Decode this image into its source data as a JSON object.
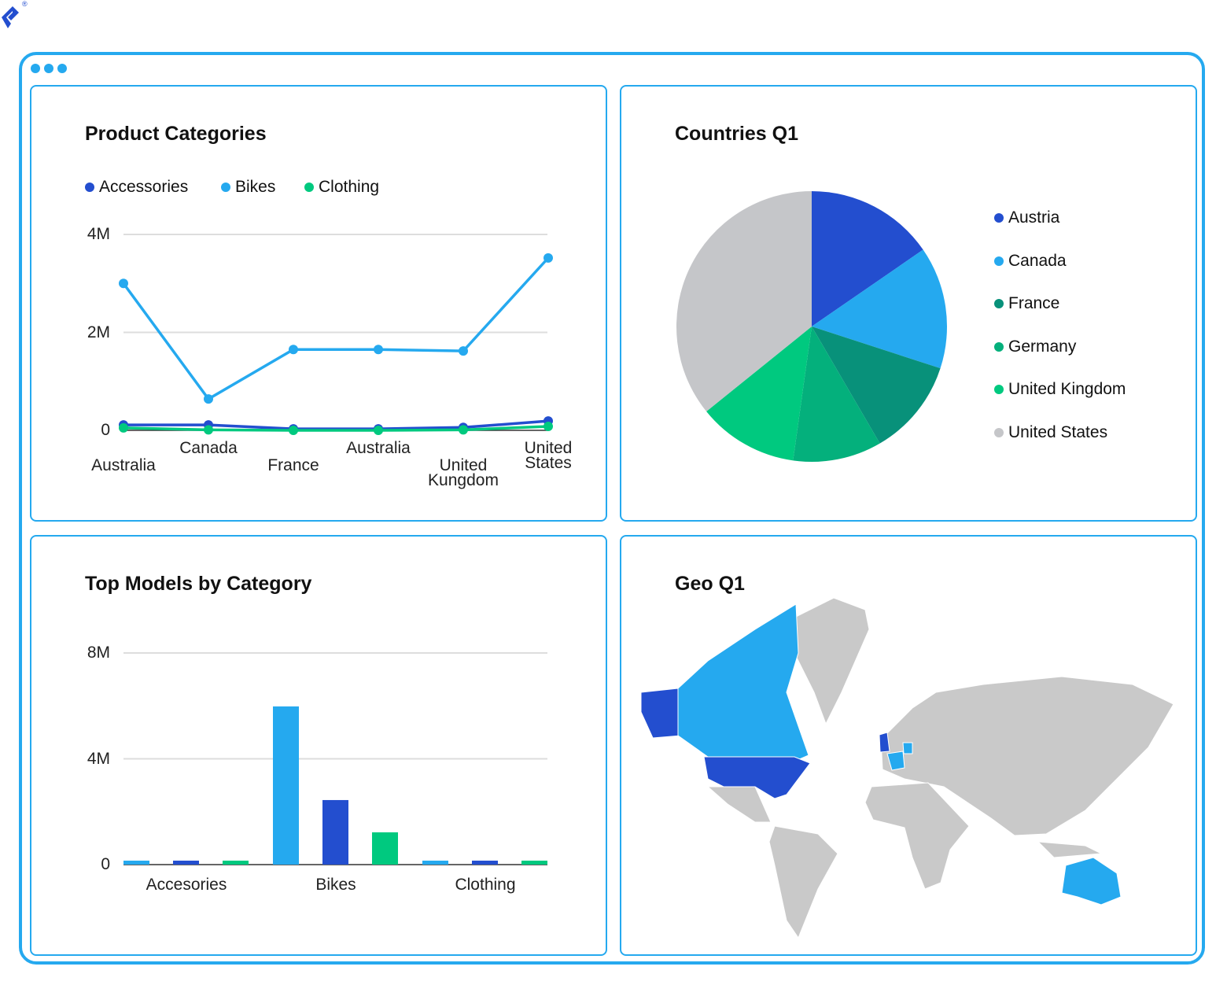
{
  "colors": {
    "accent": "#25a9ef",
    "dark_blue": "#234ecf",
    "light_blue": "#25a9ef",
    "green": "#00c97f",
    "teal": "#08917a",
    "emerald": "#04b07c",
    "gray": "#c5c6c9"
  },
  "logo": {
    "name": "toptal-logo",
    "mark": "®"
  },
  "chart_data": [
    {
      "type": "line",
      "title": "Product Categories",
      "categories": [
        "Australia",
        "Canada",
        "France",
        "Australia",
        "United Kungdom",
        "United States"
      ],
      "yticks": [
        "0",
        "2M",
        "4M"
      ],
      "ylim": [
        0,
        4000000
      ],
      "grid": true,
      "legend": "top-left",
      "series": [
        {
          "name": "Accessories",
          "color": "#234ecf",
          "values": [
            110000,
            110000,
            30000,
            30000,
            60000,
            190000
          ]
        },
        {
          "name": "Bikes",
          "color": "#25a9ef",
          "values": [
            3000000,
            640000,
            1650000,
            1650000,
            1620000,
            3520000
          ]
        },
        {
          "name": "Clothing",
          "color": "#00c97f",
          "values": [
            50000,
            10000,
            0,
            0,
            10000,
            80000
          ]
        }
      ]
    },
    {
      "type": "pie",
      "title": "Countries Q1",
      "legend": "right",
      "slices": [
        {
          "name": "Austria",
          "value": 15.4,
          "label": "15.4%",
          "color": "#234ecf"
        },
        {
          "name": "Canada",
          "value": 14.6,
          "label": "14.6%",
          "color": "#25a9ef"
        },
        {
          "name": "France",
          "value": 11.6,
          "label": "11.6%",
          "color": "#08917a"
        },
        {
          "name": "Germany",
          "value": 10.6,
          "label": "10.6%",
          "color": "#04b07c"
        },
        {
          "name": "United Kingdom",
          "value": 12,
          "label": "12%",
          "color": "#00c97f"
        },
        {
          "name": "United States",
          "value": 35.8,
          "label": "35.8%",
          "color": "#c5c6c9"
        }
      ]
    },
    {
      "type": "bar",
      "title": "Top Models by Category",
      "categories": [
        "Accesories",
        "Bikes",
        "Clothing"
      ],
      "yticks": [
        "0",
        "4M",
        "8M"
      ],
      "ylim": [
        0,
        8000000
      ],
      "grid": true,
      "series": [
        {
          "color": "#25a9ef",
          "values": [
            150000,
            5980000,
            150000
          ]
        },
        {
          "color": "#234ecf",
          "values": [
            150000,
            2440000,
            150000
          ]
        },
        {
          "color": "#00c97f",
          "values": [
            150000,
            1220000,
            150000
          ]
        }
      ]
    }
  ],
  "geo": {
    "title": "Geo Q1",
    "highlighted": [
      "Alaska",
      "Canada",
      "United States",
      "France",
      "United Kingdom",
      "Australia"
    ]
  }
}
